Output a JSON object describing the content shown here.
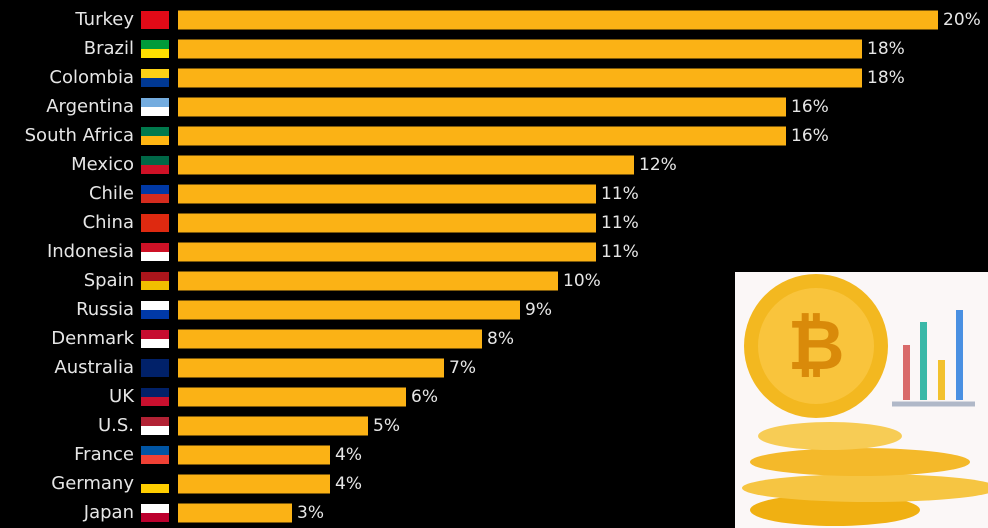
{
  "chart_data": {
    "type": "bar",
    "orientation": "horizontal",
    "categories": [
      "Turkey",
      "Brazil",
      "Colombia",
      "Argentina",
      "South Africa",
      "Mexico",
      "Chile",
      "China",
      "Indonesia",
      "Spain",
      "Russia",
      "Denmark",
      "Australia",
      "UK",
      "U.S.",
      "France",
      "Germany",
      "Japan"
    ],
    "values": [
      20,
      18,
      18,
      16,
      16,
      12,
      11,
      11,
      11,
      10,
      9,
      8,
      7,
      6,
      5,
      4,
      4,
      3
    ],
    "value_labels": [
      "20%",
      "18%",
      "18%",
      "16%",
      "16%",
      "12%",
      "11%",
      "11%",
      "11%",
      "10%",
      "9%",
      "8%",
      "7%",
      "6%",
      "5%",
      "4%",
      "4%",
      "3%"
    ],
    "color": "#fbb215"
  }
}
